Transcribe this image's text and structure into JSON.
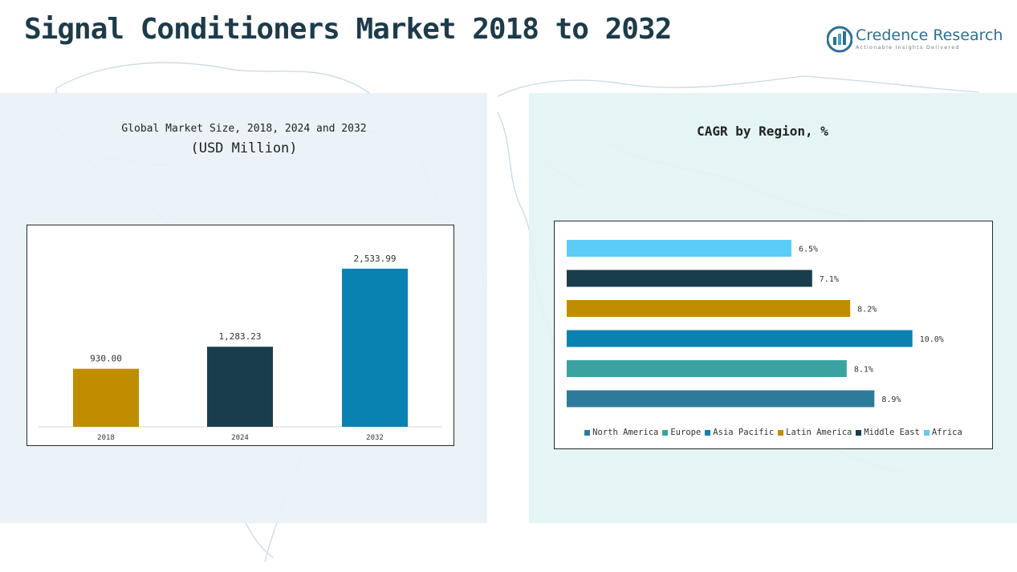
{
  "page": {
    "title": "Signal Conditioners Market 2018 to 2032",
    "logo": {
      "name": "Credence Research",
      "tagline": "Actionable Insights Delivered",
      "icon": "bar-chart-logo-icon"
    }
  },
  "left_panel": {
    "subtitle_line1": "Global Market Size, 2018, 2024 and 2032",
    "subtitle_line2": "(USD Million)"
  },
  "right_panel": {
    "title": "CAGR by Region, %"
  },
  "chart_data": [
    {
      "type": "bar",
      "title": "Global Market Size, 2018, 2024 and 2032 (USD Million)",
      "categories": [
        "2018",
        "2024",
        "2032"
      ],
      "values": [
        930.0,
        1283.23,
        2533.99
      ],
      "labels": [
        "930.00",
        "1,283.23",
        "2,533.99"
      ],
      "colors": [
        "#c08d00",
        "#193d4d",
        "#0982b2"
      ],
      "ylim": [
        0,
        2700
      ],
      "grid": false
    },
    {
      "type": "bar",
      "orientation": "horizontal",
      "title": "CAGR by Region, %",
      "categories": [
        "Africa",
        "Middle East",
        "Latin America",
        "Asia Pacific",
        "Europe",
        "North America"
      ],
      "values": [
        6.5,
        7.1,
        8.2,
        10.0,
        8.1,
        8.9
      ],
      "labels": [
        "6.5%",
        "7.1%",
        "8.2%",
        "10.0%",
        "8.1%",
        "8.9%"
      ],
      "colors": [
        "#5bccf6",
        "#193d4d",
        "#c08d00",
        "#0982b2",
        "#3aa3a1",
        "#2d7b9b"
      ],
      "xlim": [
        0,
        10.1
      ],
      "legend": {
        "position": "bottom",
        "order": [
          "North America",
          "Europe",
          "Asia Pacific",
          "Latin America",
          "Middle East",
          "Africa"
        ]
      },
      "grid": false
    }
  ]
}
